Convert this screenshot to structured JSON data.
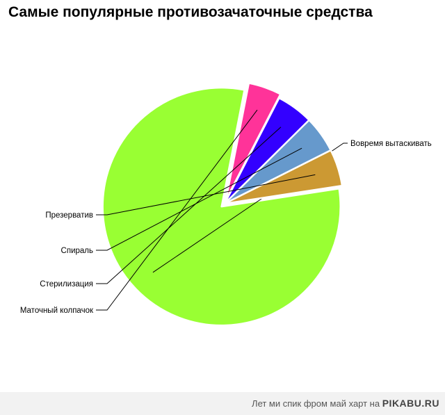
{
  "page_title": "Самые популярные противозачаточные средства",
  "chart_data": {
    "type": "pie",
    "title": "Самые популярные противозачаточные средства",
    "categories": [
      "Вовремя вытаскивать",
      "Маточный колпачок",
      "Стерилизация",
      "Спираль",
      "Презерватив"
    ],
    "values": [
      80.5,
      4.5,
      5.0,
      5.0,
      5.0
    ],
    "colors": [
      "#99ff33",
      "#ff3399",
      "#3300ff",
      "#6699cc",
      "#cc9933"
    ],
    "exploded": [
      true,
      true,
      false,
      false,
      false
    ],
    "label_position": "outside with leader lines"
  },
  "footer": {
    "text": "Лет ми спик фром май харт на",
    "brand": "PIKABU.RU"
  }
}
